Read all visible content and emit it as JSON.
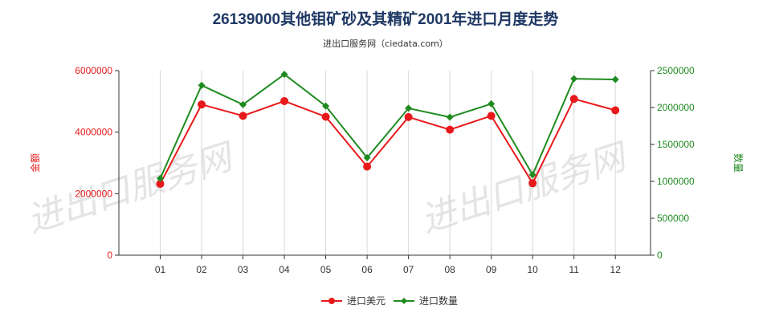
{
  "chart_data": {
    "type": "line",
    "title": "26139000其他钼矿砂及其精矿2001年进口月度走势",
    "subtitle": "进出口服务网（ciedata.com）",
    "watermark": "进出口服务网",
    "categories": [
      "01",
      "02",
      "03",
      "04",
      "05",
      "06",
      "07",
      "08",
      "09",
      "10",
      "11",
      "12"
    ],
    "y_left": {
      "label": "金额",
      "range": [
        0,
        6000000
      ],
      "ticks": [
        0,
        2000000,
        4000000,
        6000000
      ],
      "tick_labels": [
        "0",
        "2000000",
        "4000000",
        "6000000"
      ],
      "color": "#e8191b"
    },
    "y_right": {
      "label": "数量",
      "range": [
        0,
        2500000
      ],
      "ticks": [
        0,
        500000,
        1000000,
        1500000,
        2000000,
        2500000
      ],
      "tick_labels": [
        "0",
        "500000",
        "1000000",
        "1500000",
        "2000000",
        "2500000"
      ],
      "color": "#1f8b1f"
    },
    "series": [
      {
        "name": "进口美元",
        "axis": "left",
        "color": "#e8191b",
        "marker": "circle",
        "values": [
          2320000,
          4900000,
          4530000,
          5010000,
          4500000,
          2880000,
          4490000,
          4080000,
          4530000,
          2340000,
          5080000,
          4710000
        ]
      },
      {
        "name": "进口数量",
        "axis": "right",
        "color": "#1f8b1f",
        "marker": "diamond",
        "values": [
          1040000,
          2300000,
          2040000,
          2450000,
          2020000,
          1320000,
          1990000,
          1870000,
          2050000,
          1090000,
          2390000,
          2380000
        ]
      }
    ],
    "legend_position": "bottom-center",
    "grid": "vertical"
  }
}
